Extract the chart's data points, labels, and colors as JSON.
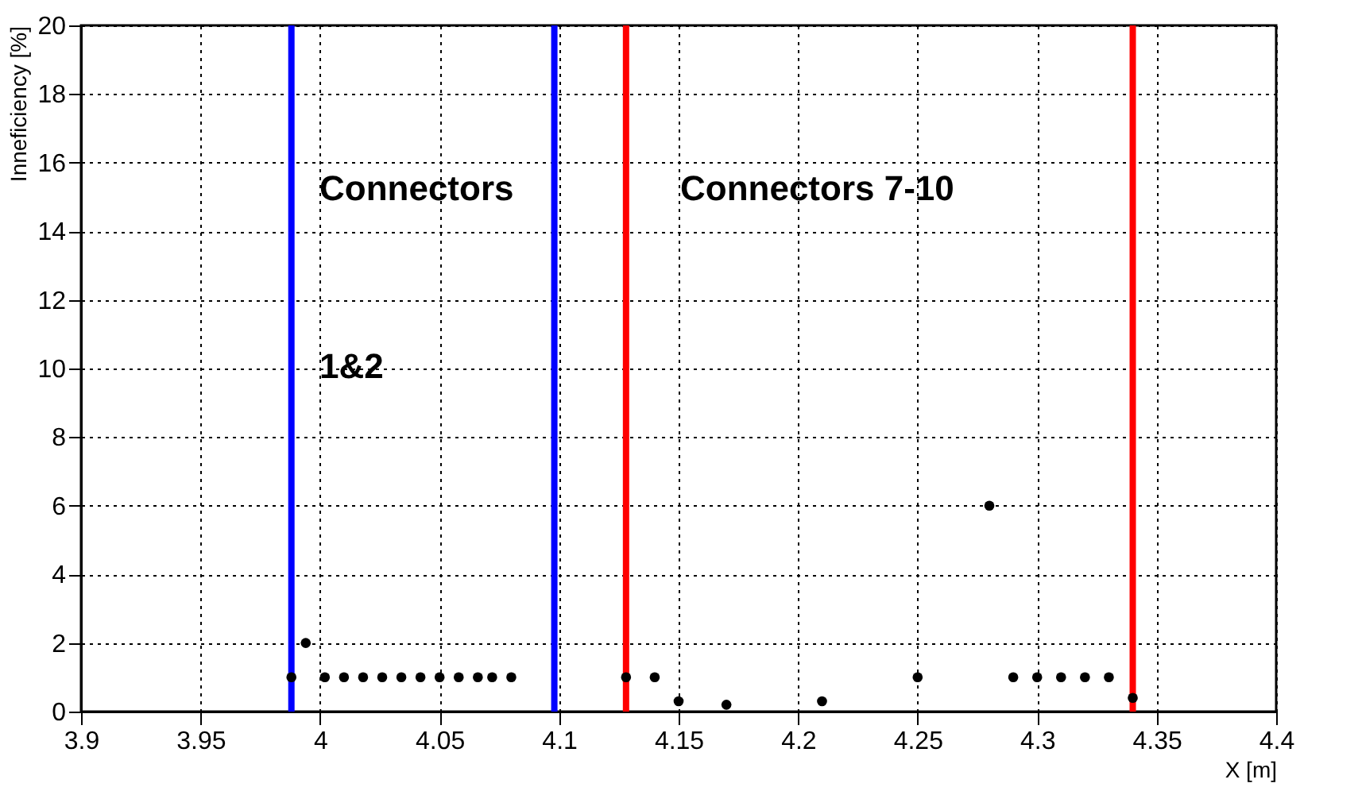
{
  "chart_data": {
    "type": "scatter",
    "xlabel": "X [m]",
    "ylabel": "Inneficiency [%]",
    "x": [
      3.988,
      3.994,
      4.002,
      4.01,
      4.018,
      4.026,
      4.034,
      4.042,
      4.05,
      4.058,
      4.066,
      4.072,
      4.08,
      4.128,
      4.14,
      4.15,
      4.17,
      4.21,
      4.25,
      4.28,
      4.29,
      4.3,
      4.31,
      4.32,
      4.33,
      4.34
    ],
    "series": [
      {
        "color": "#000000",
        "values": [
          1,
          2,
          1,
          1,
          1,
          1,
          1,
          1,
          1,
          1,
          1,
          1,
          1,
          1,
          1,
          0.3,
          0.2,
          0.3,
          1,
          6,
          1,
          1,
          1,
          1,
          1,
          0.4
        ]
      }
    ],
    "xlim": [
      3.9,
      4.4
    ],
    "xticks": [
      3.9,
      3.95,
      4,
      4.05,
      4.1,
      4.15,
      4.2,
      4.25,
      4.3,
      4.35,
      4.4
    ],
    "ylim": [
      0,
      20
    ],
    "yticks": [
      0,
      2,
      4,
      6,
      8,
      10,
      12,
      14,
      16,
      18,
      20
    ],
    "ref_lines": [
      {
        "axis": "x",
        "value": 3.988,
        "color": "#0000ff"
      },
      {
        "axis": "x",
        "value": 4.098,
        "color": "#0000ff"
      },
      {
        "axis": "x",
        "value": 4.128,
        "color": "#ff0000"
      },
      {
        "axis": "x",
        "value": 4.34,
        "color": "#ff0000"
      }
    ],
    "annotations": [
      "Connectors",
      "1&2",
      "Connectors 7-10"
    ],
    "grid": true,
    "marker": "circle"
  }
}
